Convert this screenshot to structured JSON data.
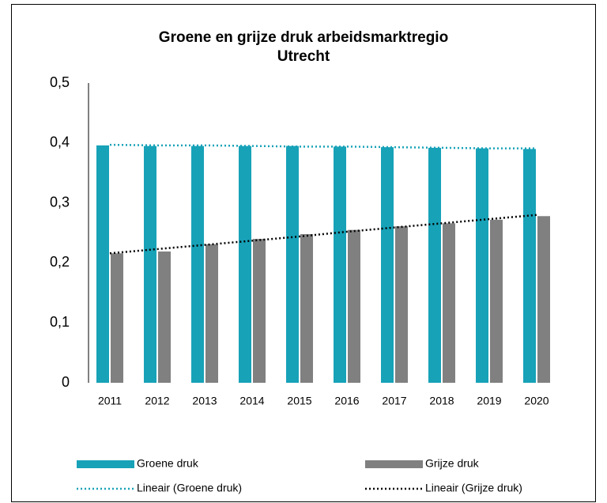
{
  "chart_data": {
    "type": "bar",
    "title": "Groene en grijze druk arbeidsmarktregio Utrecht",
    "categories": [
      "2011",
      "2012",
      "2013",
      "2014",
      "2015",
      "2016",
      "2017",
      "2018",
      "2019",
      "2020"
    ],
    "series": [
      {
        "name": "Groene druk",
        "type": "bar",
        "color": "#17a2b8",
        "values": [
          0.396,
          0.395,
          0.395,
          0.395,
          0.395,
          0.394,
          0.393,
          0.392,
          0.391,
          0.39
        ]
      },
      {
        "name": "Grijze druk",
        "type": "bar",
        "color": "#808080",
        "values": [
          0.216,
          0.219,
          0.231,
          0.24,
          0.248,
          0.255,
          0.261,
          0.266,
          0.272,
          0.278
        ]
      },
      {
        "name": "Lineair (Groene druk)",
        "type": "line",
        "style": "dotted",
        "color": "#17a2b8",
        "values": [
          0.397,
          0.396,
          0.396,
          0.395,
          0.394,
          0.394,
          0.393,
          0.392,
          0.391,
          0.391
        ]
      },
      {
        "name": "Lineair (Grijze druk)",
        "type": "line",
        "style": "dotted",
        "color": "#000000",
        "values": [
          0.216,
          0.223,
          0.23,
          0.237,
          0.244,
          0.252,
          0.259,
          0.266,
          0.273,
          0.28
        ]
      }
    ],
    "ylim": [
      0,
      0.5
    ],
    "yticks": [
      0,
      {
        "value": 0.1,
        "label": "0,1"
      },
      {
        "value": 0.2,
        "label": "0,2"
      },
      {
        "value": 0.3,
        "label": "0,3"
      },
      {
        "value": 0.4,
        "label": "0,4"
      },
      {
        "value": 0.5,
        "label": "0,5"
      }
    ],
    "grid": false,
    "legend": "bottom"
  }
}
